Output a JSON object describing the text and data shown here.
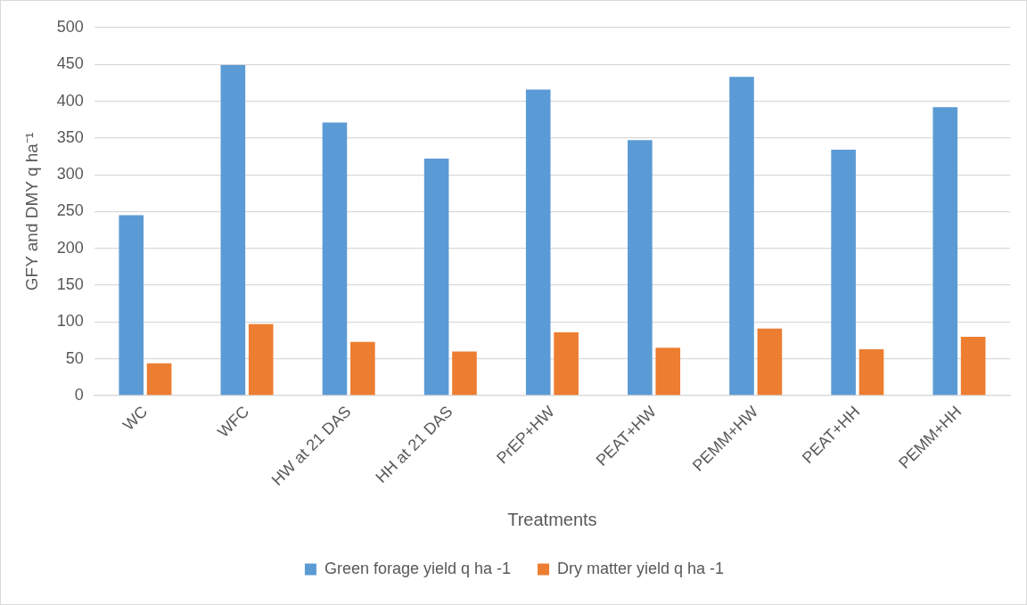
{
  "chart_data": {
    "type": "bar",
    "xlabel": "Treatments",
    "ylabel": "GFY and DMY q ha⁻¹",
    "categories": [
      "WC",
      "WFC",
      "HW at 21 DAS",
      "HH at 21 DAS",
      "PrEP+HW",
      "PEAT+HW",
      "PEMM+HW",
      "PEAT+HH",
      "PEMM+HH"
    ],
    "series": [
      {
        "name": "Green forage yield q ha -1",
        "color": "#5b9bd5",
        "values": [
          245,
          449,
          371,
          322,
          416,
          347,
          433,
          334,
          392
        ]
      },
      {
        "name": "Dry matter yield q ha -1",
        "color": "#ed7d31",
        "values": [
          44,
          97,
          73,
          60,
          86,
          65,
          91,
          63,
          80
        ]
      }
    ],
    "ylim": [
      0,
      500
    ],
    "yticks": [
      0,
      50,
      100,
      150,
      200,
      250,
      300,
      350,
      400,
      450,
      500
    ],
    "grid": "y",
    "legend": "bottom"
  }
}
